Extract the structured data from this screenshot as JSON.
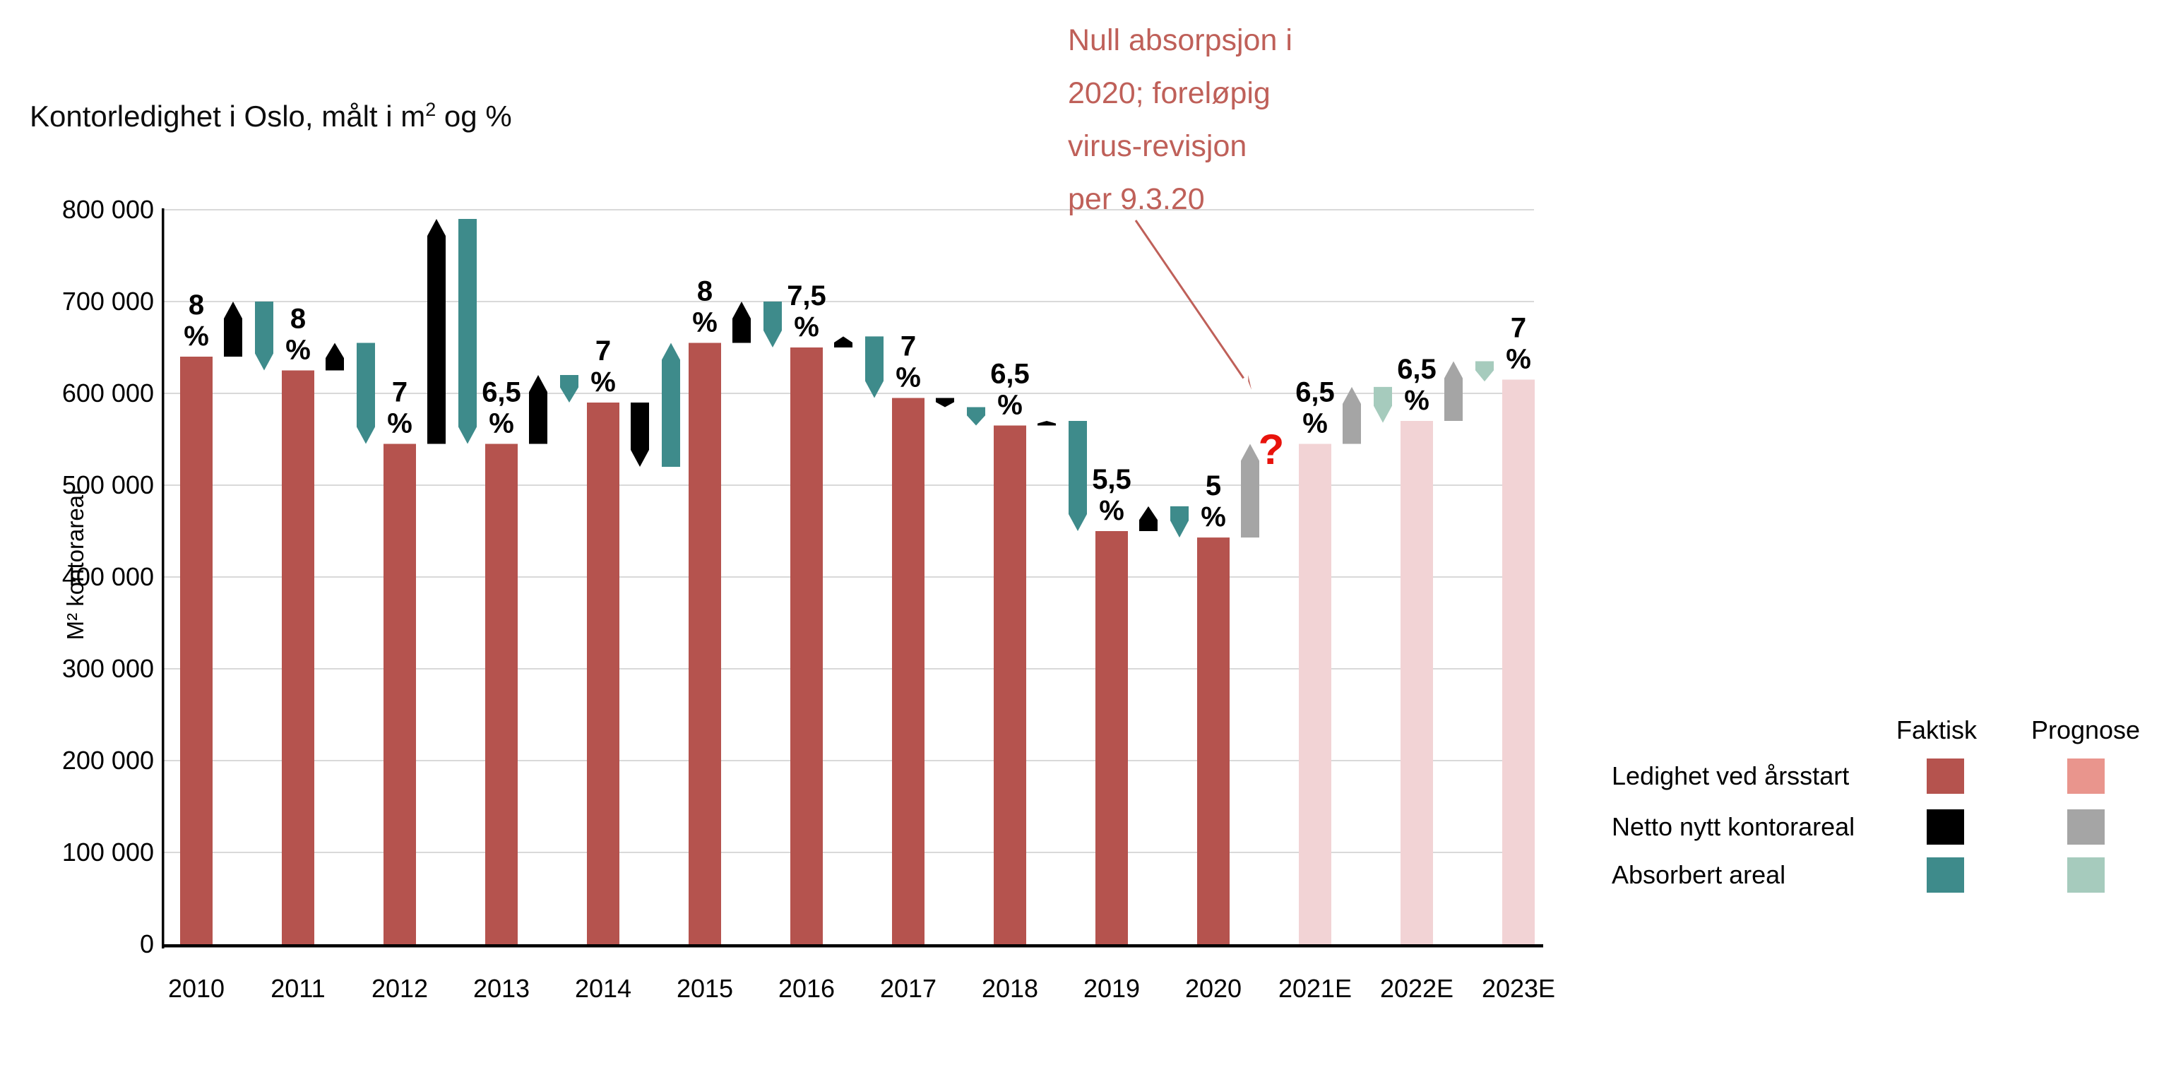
{
  "title": {
    "prefix": "Kontorledighet i Oslo, målt i m",
    "sup": "2",
    "suffix": " og %"
  },
  "annotation": {
    "lines": [
      "Null absorpsjon i",
      "2020; foreløpig",
      "virus-revisjon",
      "per 9.3.20"
    ],
    "question_mark": "?",
    "color": "#bf6059",
    "question_color": "#e8130c"
  },
  "y_axis": {
    "title": "M² kontorareal",
    "ticks": [
      "800 000",
      "700 000",
      "600 000",
      "500 000",
      "400 000",
      "300 000",
      "200 000",
      "100 000",
      "0"
    ]
  },
  "colors": {
    "vacancy_actual": "#b5534e",
    "vacancy_forecast": "#f2d3d5",
    "net_new_actual": "#000000",
    "net_new_forecast": "#a5a5a5",
    "absorbed_actual": "#3e8b8b",
    "absorbed_forecast": "#a6cbbd",
    "grid": "#d9d9d9",
    "axis": "#000000"
  },
  "legend": {
    "col_headers": [
      "Faktisk",
      "Prognose"
    ],
    "rows": [
      {
        "label": "Ledighet ved årsstart",
        "faktisk": "#b5534e",
        "prognose": "#e9958d"
      },
      {
        "label": "Netto nytt kontorareal",
        "faktisk": "#000000",
        "prognose": "#a5a5a5"
      },
      {
        "label": "Absorbert areal",
        "faktisk": "#3e8b8b",
        "prognose": "#a6cbbd"
      }
    ]
  },
  "chart_data": {
    "type": "bar",
    "subtype": "waterfall-with-arrows",
    "title": "Kontorledighet i Oslo, målt i m² og %",
    "ylabel": "M² kontorareal",
    "ylim": [
      0,
      800000
    ],
    "y_tick_step": 100000,
    "grid": "horizontal",
    "unit": "m²",
    "years": [
      {
        "label": "2010",
        "vacancy": 640000,
        "vacancy_pct": "8",
        "bar_style": "actual",
        "net_new": {
          "from": 640000,
          "to": 700000,
          "style": "actual"
        },
        "absorbed": {
          "from": 700000,
          "to": 625000,
          "style": "actual"
        }
      },
      {
        "label": "2011",
        "vacancy": 625000,
        "vacancy_pct": "8",
        "bar_style": "actual",
        "net_new": {
          "from": 625000,
          "to": 655000,
          "style": "actual"
        },
        "absorbed": {
          "from": 655000,
          "to": 545000,
          "style": "actual"
        }
      },
      {
        "label": "2012",
        "vacancy": 545000,
        "vacancy_pct": "7",
        "bar_style": "actual",
        "net_new": {
          "from": 545000,
          "to": 790000,
          "style": "actual"
        },
        "absorbed": {
          "from": 790000,
          "to": 545000,
          "style": "actual"
        }
      },
      {
        "label": "2013",
        "vacancy": 545000,
        "vacancy_pct": "6,5",
        "bar_style": "actual",
        "net_new": {
          "from": 545000,
          "to": 620000,
          "style": "actual"
        },
        "absorbed": {
          "from": 620000,
          "to": 590000,
          "style": "actual"
        }
      },
      {
        "label": "2014",
        "vacancy": 590000,
        "vacancy_pct": "7",
        "bar_style": "actual",
        "net_new": {
          "from": 590000,
          "to": 520000,
          "style": "actual"
        },
        "absorbed": {
          "from": 520000,
          "to": 655000,
          "style": "actual"
        }
      },
      {
        "label": "2015",
        "vacancy": 655000,
        "vacancy_pct": "8",
        "bar_style": "actual",
        "net_new": {
          "from": 655000,
          "to": 700000,
          "style": "actual"
        },
        "absorbed": {
          "from": 700000,
          "to": 650000,
          "style": "actual"
        }
      },
      {
        "label": "2016",
        "vacancy": 650000,
        "vacancy_pct": "7,5",
        "bar_style": "actual",
        "net_new": {
          "from": 650000,
          "to": 662000,
          "style": "actual"
        },
        "absorbed": {
          "from": 662000,
          "to": 595000,
          "style": "actual"
        }
      },
      {
        "label": "2017",
        "vacancy": 595000,
        "vacancy_pct": "7",
        "bar_style": "actual",
        "net_new": {
          "from": 595000,
          "to": 585000,
          "style": "actual"
        },
        "absorbed": {
          "from": 585000,
          "to": 565000,
          "style": "actual"
        }
      },
      {
        "label": "2018",
        "vacancy": 565000,
        "vacancy_pct": "6,5",
        "bar_style": "actual",
        "net_new": {
          "from": 565000,
          "to": 570000,
          "style": "actual"
        },
        "absorbed": {
          "from": 570000,
          "to": 450000,
          "style": "actual"
        }
      },
      {
        "label": "2019",
        "vacancy": 450000,
        "vacancy_pct": "5,5",
        "bar_style": "actual",
        "net_new": {
          "from": 450000,
          "to": 477000,
          "style": "actual"
        },
        "absorbed": {
          "from": 477000,
          "to": 443000,
          "style": "actual"
        }
      },
      {
        "label": "2020",
        "vacancy": 443000,
        "vacancy_pct": "5",
        "bar_style": "actual",
        "net_new": {
          "from": 443000,
          "to": 545000,
          "style": "forecast"
        },
        "absorbed": null
      },
      {
        "label": "2021E",
        "vacancy": 545000,
        "vacancy_pct": "6,5",
        "bar_style": "forecast",
        "net_new": {
          "from": 545000,
          "to": 607000,
          "style": "forecast"
        },
        "absorbed": {
          "from": 607000,
          "to": 568000,
          "style": "forecast"
        }
      },
      {
        "label": "2022E",
        "vacancy": 570000,
        "vacancy_pct": "6,5",
        "bar_style": "forecast",
        "net_new": {
          "from": 570000,
          "to": 635000,
          "style": "forecast"
        },
        "absorbed": {
          "from": 635000,
          "to": 613000,
          "style": "forecast"
        }
      },
      {
        "label": "2023E",
        "vacancy": 615000,
        "vacancy_pct": "7",
        "bar_style": "forecast",
        "net_new": null,
        "absorbed": null
      }
    ]
  }
}
